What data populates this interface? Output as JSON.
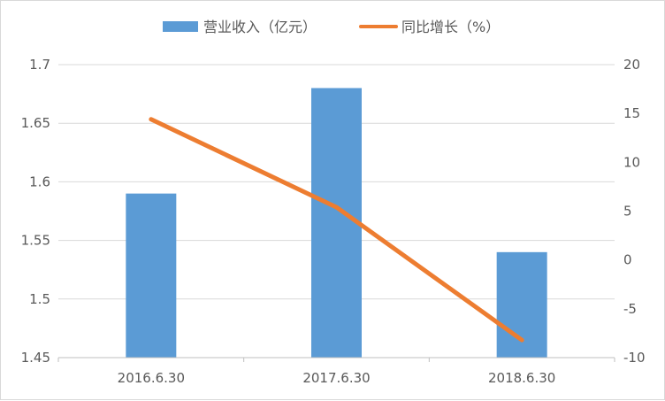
{
  "chart_data": {
    "type": "bar",
    "categories": [
      "2016.6.30",
      "2017.6.30",
      "2018.6.30"
    ],
    "series": [
      {
        "name": "营业收入（亿元）",
        "kind": "bar",
        "axis": "left",
        "values": [
          1.59,
          1.68,
          1.54
        ]
      },
      {
        "name": "同比增长（%）",
        "kind": "line",
        "axis": "right",
        "values": [
          14.4,
          5.4,
          -8.2
        ]
      }
    ],
    "y_left": {
      "min": 1.45,
      "max": 1.7,
      "step": 0.05,
      "tick_labels": [
        "1.45",
        "1.5",
        "1.55",
        "1.6",
        "1.65",
        "1.7"
      ]
    },
    "y_right": {
      "min": -10,
      "max": 20,
      "step": 5,
      "tick_labels": [
        "-10",
        "-5",
        "0",
        "5",
        "10",
        "15",
        "20"
      ]
    },
    "grid": true,
    "legend": "top",
    "colors": {
      "bar": "#5b9bd5",
      "line": "#ed7d31",
      "grid": "#d9d9d9",
      "text": "#595959"
    }
  }
}
